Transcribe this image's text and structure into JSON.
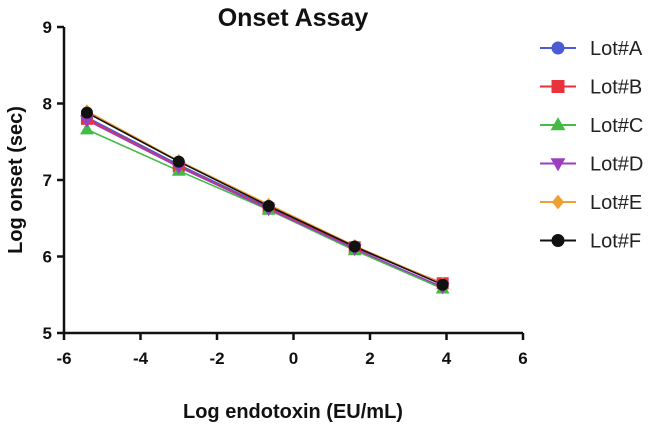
{
  "chart_data": {
    "type": "line",
    "title": "Onset Assay",
    "xlabel": "Log endotoxin (EU/mL)",
    "ylabel": "Log onset (sec)",
    "xlim": [
      -6,
      6
    ],
    "ylim": [
      5,
      9
    ],
    "xticks": [
      -6,
      -4,
      -2,
      0,
      2,
      4,
      6
    ],
    "yticks": [
      5,
      6,
      7,
      8,
      9
    ],
    "x": [
      -5.4,
      -3.0,
      -0.65,
      1.6,
      3.9
    ],
    "legend_position": "right",
    "grid": false,
    "series": [
      {
        "name": "Lot#A",
        "color": "#4a5bd4",
        "marker": "circle",
        "values": [
          7.82,
          7.2,
          6.64,
          6.12,
          5.64
        ]
      },
      {
        "name": "Lot#B",
        "color": "#e8323c",
        "marker": "square",
        "values": [
          7.8,
          7.18,
          6.63,
          6.12,
          5.65
        ]
      },
      {
        "name": "Lot#C",
        "color": "#44bb44",
        "marker": "triangle-up",
        "values": [
          7.66,
          7.12,
          6.61,
          6.08,
          5.58
        ]
      },
      {
        "name": "Lot#D",
        "color": "#9b3fc2",
        "marker": "triangle-down",
        "values": [
          7.78,
          7.17,
          6.62,
          6.1,
          5.6
        ]
      },
      {
        "name": "Lot#E",
        "color": "#f0a030",
        "marker": "diamond",
        "values": [
          7.9,
          7.25,
          6.68,
          6.14,
          5.64
        ]
      },
      {
        "name": "Lot#F",
        "color": "#111111",
        "marker": "circle",
        "values": [
          7.88,
          7.24,
          6.66,
          6.13,
          5.63
        ]
      }
    ]
  }
}
